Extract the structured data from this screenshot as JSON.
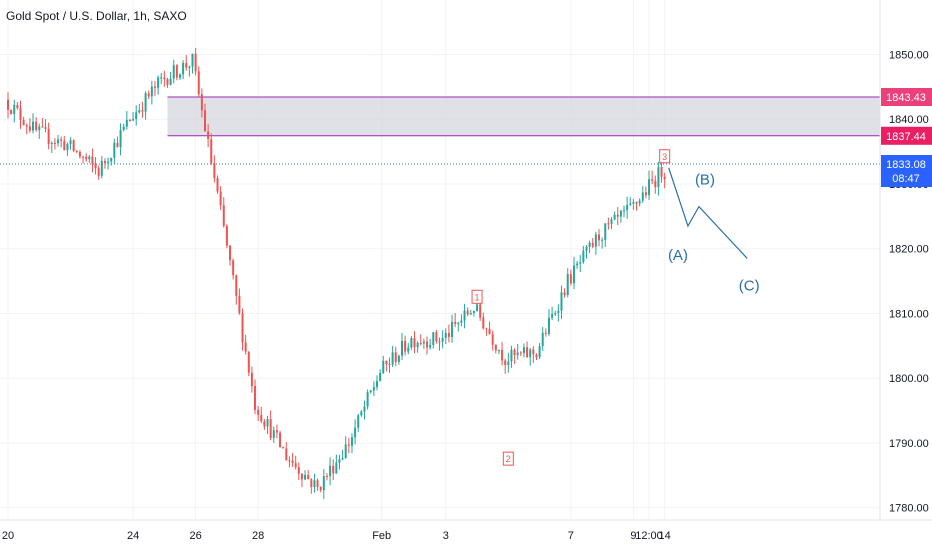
{
  "chart_data": {
    "type": "candlestick",
    "title": "Gold Spot / U.S. Dollar, 1h, SAXO",
    "ylim": [
      1778,
      1857
    ],
    "y_ticks": [
      "1850.00",
      "1840.00",
      "1830.00",
      "1820.00",
      "1810.00",
      "1800.00",
      "1790.00",
      "1780.00"
    ],
    "x_ticks": [
      {
        "label": "20",
        "day": 0
      },
      {
        "label": "24",
        "day": 4
      },
      {
        "label": "26",
        "day": 6
      },
      {
        "label": "28",
        "day": 8
      },
      {
        "label": "Feb",
        "day": 11.95
      },
      {
        "label": "3",
        "day": 14
      },
      {
        "label": "7",
        "day": 18
      },
      {
        "label": "9",
        "day": 20
      },
      {
        "label": "12:00",
        "day": 20.5
      },
      {
        "label": "14",
        "day": 21
      }
    ],
    "price_path": [
      [
        "2022-01-20",
        1843
      ],
      [
        "2022-01-21",
        1838
      ],
      [
        "2022-01-22",
        1836
      ],
      [
        "2022-01-23",
        1832
      ],
      [
        "2022-01-24",
        1840
      ],
      [
        "2022-01-25",
        1846
      ],
      [
        "2022-01-26",
        1849
      ],
      [
        "2022-01-27",
        1823
      ],
      [
        "2022-01-28",
        1796
      ],
      [
        "2022-01-29",
        1788
      ],
      [
        "2022-01-30",
        1783
      ],
      [
        "2022-01-31",
        1790
      ],
      [
        "2022-02-01",
        1801
      ],
      [
        "2022-02-02",
        1806
      ],
      [
        "2022-02-03",
        1806
      ],
      [
        "2022-02-04",
        1811
      ],
      [
        "2022-02-05",
        1803
      ],
      [
        "2022-02-06",
        1804
      ],
      [
        "2022-02-07",
        1815
      ],
      [
        "2022-02-08",
        1822
      ],
      [
        "2022-02-09",
        1826
      ],
      [
        "2022-02-10",
        1832
      ]
    ],
    "zone": {
      "high": 1843.43,
      "low": 1837.44
    },
    "price_levels": [
      {
        "label": "1843.43",
        "color": "#ec407a"
      },
      {
        "label": "1837.44",
        "color": "#e91e63"
      }
    ],
    "current_price": {
      "label": "1833.08",
      "countdown": "08:47",
      "value": 1833.08,
      "color": "#2962ff"
    },
    "wave_numbers": [
      {
        "label": "1",
        "date": "2022-02-04",
        "price": 1812.5
      },
      {
        "label": "2",
        "date": "2022-02-05",
        "price": 1787.5
      },
      {
        "label": "3",
        "date": "2022-02-10",
        "price": 1834.2
      }
    ],
    "projection": {
      "labels": [
        "(A)",
        "(B)",
        "(C)"
      ],
      "path": [
        [
          "2022-02-10",
          1832.5
        ],
        [
          "2022-02-11",
          1823.5
        ],
        [
          "2022-02-11",
          1826.5
        ],
        [
          "2022-02-12",
          1818.5
        ]
      ]
    },
    "colors": {
      "up": "#26a69a",
      "down": "#ef5350",
      "projection": "#2a6fa8",
      "zone_fill": "#d1d4dc",
      "zone_border": "#9c27b0"
    }
  }
}
